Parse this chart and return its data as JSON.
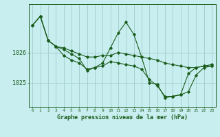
{
  "title": "Graphe pression niveau de la mer (hPa)",
  "bg_color": "#c8eef0",
  "plot_bg_color": "#c8eef0",
  "line_color": "#1a5c1a",
  "grid_color": "#a0cccc",
  "x_ticks": [
    0,
    1,
    2,
    3,
    4,
    5,
    6,
    7,
    8,
    9,
    10,
    11,
    12,
    13,
    14,
    15,
    16,
    17,
    18,
    19,
    20,
    21,
    22,
    23
  ],
  "y_ticks": [
    1025,
    1026
  ],
  "ylim": [
    1024.2,
    1027.6
  ],
  "xlim": [
    -0.5,
    23.5
  ],
  "lines": [
    [
      1026.9,
      1027.2,
      1026.4,
      1026.2,
      1026.15,
      1026.05,
      1025.95,
      1025.85,
      1025.85,
      1025.9,
      1025.9,
      1026.0,
      1025.95,
      1025.9,
      1025.85,
      1025.8,
      1025.75,
      1025.65,
      1025.6,
      1025.55,
      1025.5,
      1025.5,
      1025.55,
      1025.6
    ],
    [
      1026.9,
      1027.2,
      1026.4,
      1026.2,
      1025.9,
      1025.75,
      1025.65,
      1025.45,
      1025.5,
      1025.65,
      1026.15,
      1026.65,
      1027.0,
      1026.6,
      1025.85,
      1025.0,
      1024.95,
      1024.5,
      1024.55,
      1024.6,
      1024.7,
      1025.25,
      1025.5,
      1025.55
    ],
    [
      1026.9,
      1027.2,
      1026.4,
      1026.2,
      1026.1,
      1025.95,
      1025.8,
      1025.4,
      1025.5,
      1025.55,
      1025.7,
      1025.65,
      1025.6,
      1025.55,
      1025.45,
      1025.1,
      1024.9,
      1024.55,
      1024.55,
      1024.6,
      1025.3,
      1025.5,
      1025.55,
      1025.55
    ]
  ]
}
